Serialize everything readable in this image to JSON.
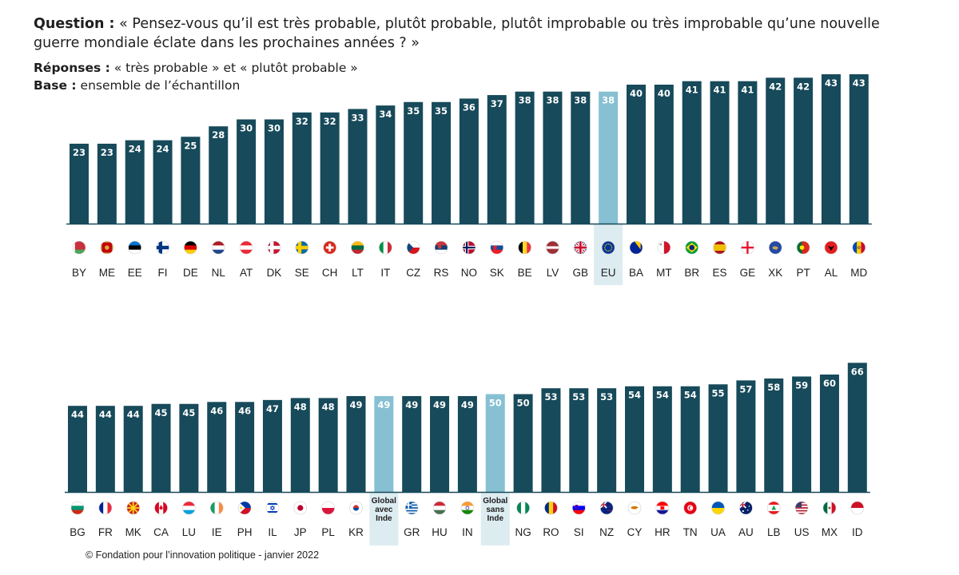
{
  "header": {
    "question_label": "Question :",
    "question_text": "« Pensez-vous qu’il est très probable, plutôt probable, plutôt improbable ou très improbable qu’une nouvelle guerre mondiale éclate dans les prochaines années ? »",
    "responses_label": "Réponses :",
    "responses_text": "« très probable » et « plutôt probable »",
    "base_label": "Base :",
    "base_text": "ensemble de l’échantillon"
  },
  "footer": {
    "source": "© Fondation pour l’innovation politique - janvier 2022"
  },
  "colors": {
    "bar": "#174a5a",
    "highlight_bar": "#86c0d2",
    "highlight_bg": "#ddecf1",
    "baseline": "#174a5a",
    "value_text": "#ffffff"
  },
  "chart_data": [
    {
      "type": "bar",
      "title": "",
      "xlabel": "",
      "ylabel": "",
      "ylim": [
        0,
        70
      ],
      "categories": [
        "BY",
        "ME",
        "EE",
        "FI",
        "DE",
        "NL",
        "AT",
        "DK",
        "SE",
        "CH",
        "LT",
        "IT",
        "CZ",
        "RS",
        "NO",
        "SK",
        "BE",
        "LV",
        "GB",
        "EU",
        "BA",
        "MT",
        "BR",
        "ES",
        "GE",
        "XK",
        "PT",
        "AL",
        "MD"
      ],
      "values": [
        23,
        23,
        24,
        24,
        25,
        28,
        30,
        30,
        32,
        32,
        33,
        34,
        35,
        35,
        36,
        37,
        38,
        38,
        38,
        38,
        40,
        40,
        41,
        41,
        41,
        42,
        42,
        43,
        43
      ],
      "flag_icons": [
        "belarus-flag-icon",
        "montenegro-flag-icon",
        "estonia-flag-icon",
        "finland-flag-icon",
        "germany-flag-icon",
        "netherlands-flag-icon",
        "austria-flag-icon",
        "denmark-flag-icon",
        "sweden-flag-icon",
        "switzerland-flag-icon",
        "lithuania-flag-icon",
        "italy-flag-icon",
        "czechia-flag-icon",
        "serbia-flag-icon",
        "norway-flag-icon",
        "slovakia-flag-icon",
        "belgium-flag-icon",
        "latvia-flag-icon",
        "uk-flag-icon",
        "eu-flag-icon",
        "bosnia-flag-icon",
        "malta-flag-icon",
        "brazil-flag-icon",
        "spain-flag-icon",
        "georgia-flag-icon",
        "kosovo-flag-icon",
        "portugal-flag-icon",
        "albania-flag-icon",
        "moldova-flag-icon"
      ],
      "highlighted": [
        "EU"
      ]
    },
    {
      "type": "bar",
      "title": "",
      "xlabel": "",
      "ylabel": "",
      "ylim": [
        0,
        70
      ],
      "categories": [
        "BG",
        "FR",
        "MK",
        "CA",
        "LU",
        "IE",
        "PH",
        "IL",
        "JP",
        "PL",
        "KR",
        "Global avec Inde",
        "GR",
        "HU",
        "IN",
        "Global sans Inde",
        "NG",
        "RO",
        "SI",
        "NZ",
        "CY",
        "HR",
        "TN",
        "UA",
        "AU",
        "LB",
        "US",
        "MX",
        "ID"
      ],
      "values": [
        44,
        44,
        44,
        45,
        45,
        46,
        46,
        47,
        48,
        48,
        49,
        49,
        49,
        49,
        49,
        50,
        50,
        53,
        53,
        53,
        54,
        54,
        54,
        55,
        57,
        58,
        59,
        60,
        66
      ],
      "flag_icons": [
        "bulgaria-flag-icon",
        "france-flag-icon",
        "north-macedonia-flag-icon",
        "canada-flag-icon",
        "luxembourg-flag-icon",
        "ireland-flag-icon",
        "philippines-flag-icon",
        "israel-flag-icon",
        "japan-flag-icon",
        "poland-flag-icon",
        "south-korea-flag-icon",
        "",
        "greece-flag-icon",
        "hungary-flag-icon",
        "india-flag-icon",
        "",
        "nigeria-flag-icon",
        "romania-flag-icon",
        "slovenia-flag-icon",
        "new-zealand-flag-icon",
        "cyprus-flag-icon",
        "croatia-flag-icon",
        "tunisia-flag-icon",
        "ukraine-flag-icon",
        "australia-flag-icon",
        "lebanon-flag-icon",
        "usa-flag-icon",
        "mexico-flag-icon",
        "indonesia-flag-icon"
      ],
      "highlighted": [
        "Global avec Inde",
        "Global sans Inde"
      ]
    }
  ]
}
